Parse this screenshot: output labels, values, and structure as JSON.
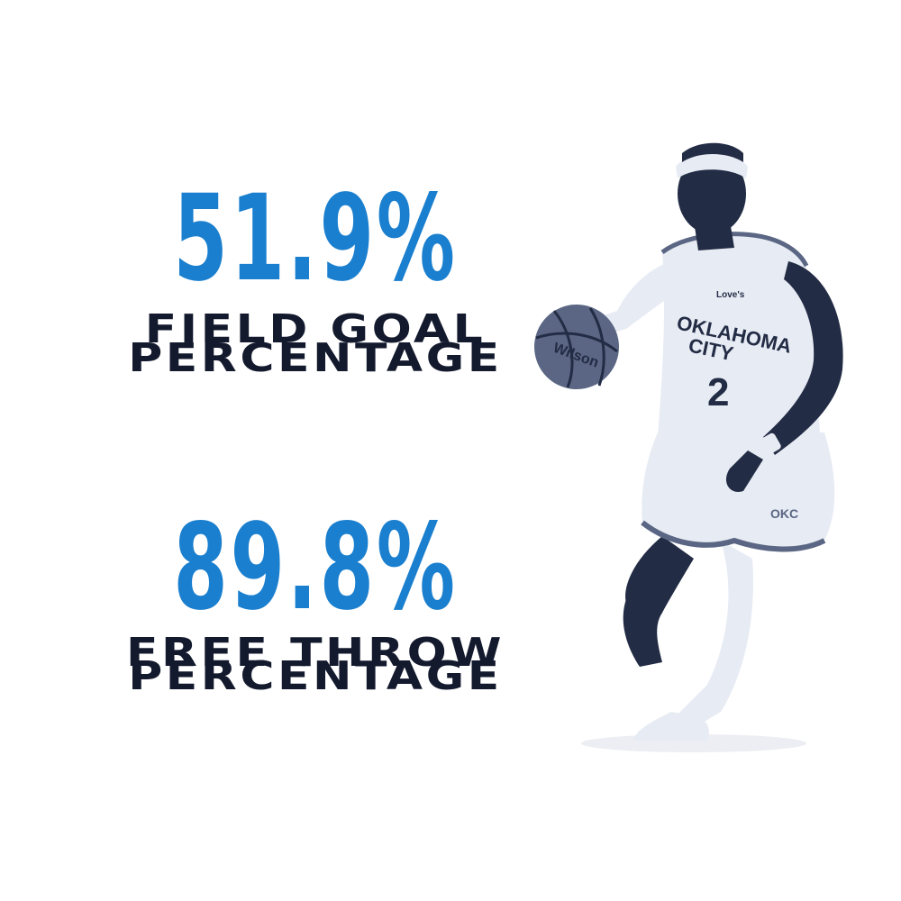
{
  "colors": {
    "accent": "#1a7fce",
    "label": "#141a2e",
    "background": "#ffffff",
    "player_dark": "#232c45",
    "player_mid": "#5a6683",
    "player_light": "#e7ebf3"
  },
  "stats": [
    {
      "value": "51.9%",
      "label_line1": "FIELD GOAL",
      "label_line2": "PERCENTAGE"
    },
    {
      "value": "89.8%",
      "label_line1": "FREE THROW",
      "label_line2": "PERCENTAGE"
    }
  ],
  "player": {
    "jersey_team_line1": "OKLAHOMA",
    "jersey_team_line2": "CITY",
    "jersey_number": "2",
    "jersey_patch": "Love's",
    "shorts_logo": "OKC",
    "ball_brand": "Wilson",
    "icon": "basketball-player-photo"
  }
}
